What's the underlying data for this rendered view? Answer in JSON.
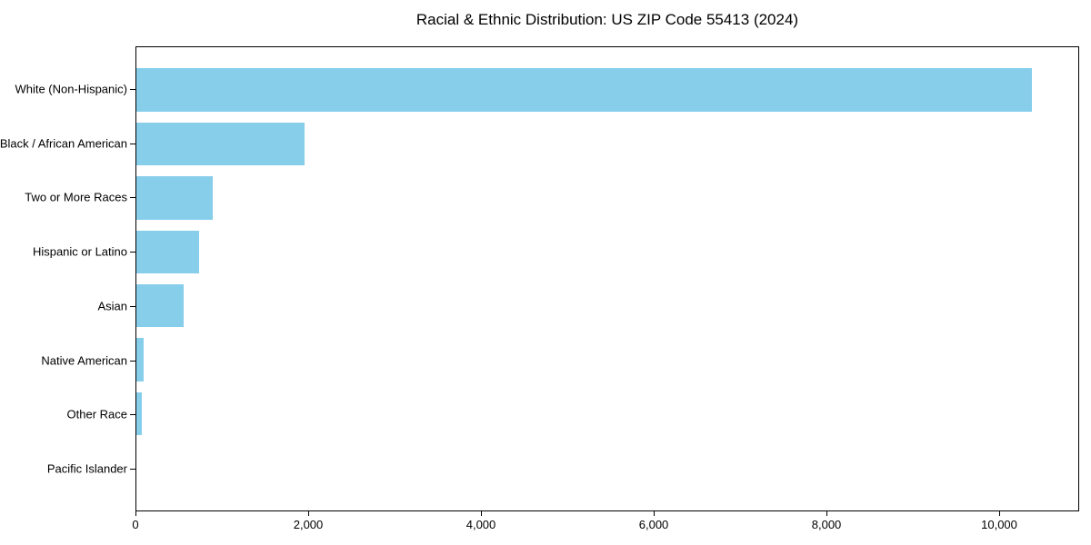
{
  "chart_data": {
    "type": "bar",
    "orientation": "horizontal",
    "title": "Racial & Ethnic Distribution: US ZIP Code 55413 (2024)",
    "categories": [
      "White (Non-Hispanic)",
      "Black / African American",
      "Two or More Races",
      "Hispanic or Latino",
      "Asian",
      "Native American",
      "Other Race",
      "Pacific Islander"
    ],
    "values": [
      10390,
      1950,
      890,
      730,
      550,
      85,
      60,
      0
    ],
    "xlim": [
      0,
      10926
    ],
    "x_ticks": [
      0,
      2000,
      4000,
      6000,
      8000,
      10000
    ],
    "x_tick_labels": [
      "0",
      "2,000",
      "4,000",
      "6,000",
      "8,000",
      "10,000"
    ],
    "xlabel": "",
    "ylabel": "",
    "legend_position": "none",
    "grid": false,
    "colors": {
      "bar": "#87CEEB",
      "text": "#000000",
      "spine": "#000000",
      "background": "#FFFFFF"
    }
  }
}
